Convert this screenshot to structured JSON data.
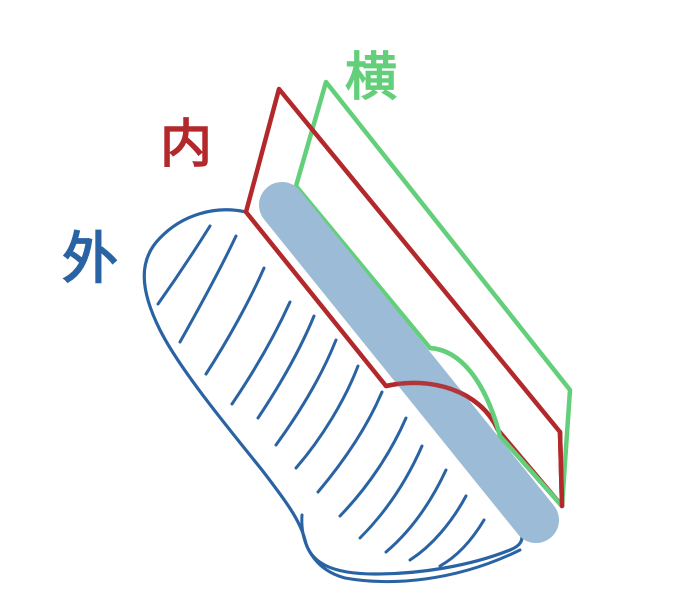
{
  "labels": {
    "outer": "外",
    "inner": "内",
    "transverse": "横"
  },
  "colors": {
    "outer": "#2a63a3",
    "inner": "#b3282b",
    "transverse": "#63cf7a",
    "edge": "#9bbbd6",
    "background": "#ffffff"
  }
}
